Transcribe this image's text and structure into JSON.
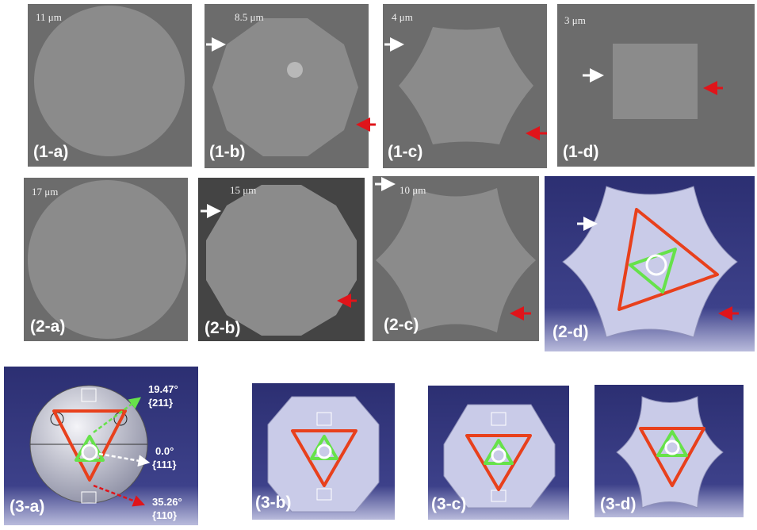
{
  "panels": [
    {
      "label": "(1-a)",
      "scale": "11 μm"
    },
    {
      "label": "(1-b)",
      "scale": "8.5 μm"
    },
    {
      "label": "(1-c)",
      "scale": "4 μm"
    },
    {
      "label": "(1-d)",
      "scale": "3 μm"
    },
    {
      "label": "(2-a)",
      "scale": "17 μm"
    },
    {
      "label": "(2-b)",
      "scale": "15 μm"
    },
    {
      "label": "(2-c)",
      "scale": "10 μm"
    },
    {
      "label": "(2-d)"
    },
    {
      "label": "(3-a)"
    },
    {
      "label": "(3-b)"
    },
    {
      "label": "(3-c)"
    },
    {
      "label": "(3-d)"
    }
  ],
  "annotations": [
    {
      "angle": "19.47°",
      "plane": "{211}"
    },
    {
      "angle": "0.0°",
      "plane": "{111}"
    },
    {
      "angle": "35.26°",
      "plane": "{110}"
    }
  ]
}
